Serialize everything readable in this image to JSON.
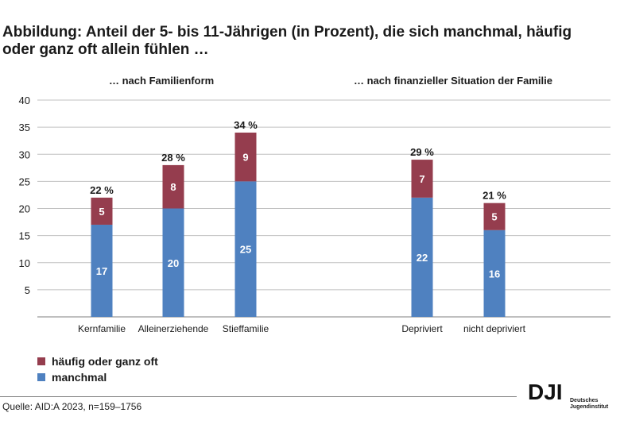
{
  "title": "Abbildung: Anteil der 5- bis 11-Jährigen (in Prozent), die sich manchmal, häufig oder ganz oft allein fühlen …",
  "subtitles": {
    "left": "… nach Familienform",
    "right": "… nach finanzieller Situation der Familie"
  },
  "legend": {
    "item1": "häufig oder ganz oft",
    "item2": "manchmal"
  },
  "source": "Quelle: AID:A 2023, n=159–1756",
  "logo": {
    "letters": "DJI",
    "line1": "Deutsches",
    "line2": "Jugendinstitut"
  },
  "colors": {
    "manchmal": "#4f81c0",
    "haeufig": "#953d4e",
    "grid": "#c0c0c0"
  },
  "chart_data": {
    "type": "bar",
    "stacked": true,
    "categories": [
      "Kernfamilie",
      "Alleinerziehende",
      "Stieffamilie",
      "Depriviert",
      "nicht depriviert"
    ],
    "series": [
      {
        "name": "manchmal",
        "values": [
          17,
          20,
          25,
          22,
          16
        ]
      },
      {
        "name": "häufig oder ganz oft",
        "values": [
          5,
          8,
          9,
          7,
          5
        ]
      }
    ],
    "totals": [
      "22 %",
      "28 %",
      "34 %",
      "29 %",
      "21 %"
    ],
    "ylim": [
      0,
      40
    ],
    "yticks": [
      5,
      10,
      15,
      20,
      25,
      30,
      35,
      40
    ],
    "grid": true,
    "legend_position": "bottom-left"
  }
}
